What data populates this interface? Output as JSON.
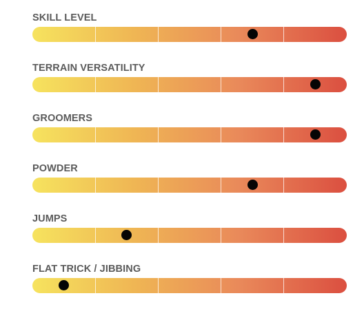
{
  "ratings": [
    {
      "label": "SKILL LEVEL",
      "level_fraction": 0.7
    },
    {
      "label": "TERRAIN VERSATILITY",
      "level_fraction": 0.9
    },
    {
      "label": "GROOMERS",
      "level_fraction": 0.9
    },
    {
      "label": "POWDER",
      "level_fraction": 0.7
    },
    {
      "label": "JUMPS",
      "level_fraction": 0.3
    },
    {
      "label": "FLAT TRICK / JIBBING",
      "level_fraction": 0.1
    }
  ],
  "colors": {
    "label_text": "#5a5a5a",
    "gradient_start": "#f6e35e",
    "gradient_mid1": "#efb554",
    "gradient_mid2": "#e9895a",
    "gradient_end": "#db4f40",
    "marker": "#050505"
  }
}
